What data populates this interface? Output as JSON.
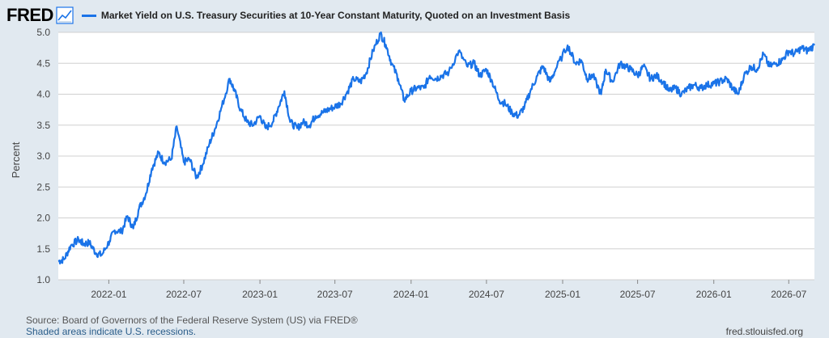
{
  "header": {
    "logo": "FRED",
    "logo_icon": "chart-line-icon",
    "series_title": "Market Yield on U.S. Treasury Securities at 10-Year Constant Maturity, Quoted on an Investment Basis"
  },
  "footer": {
    "source": "Source: Board of Governors of the Federal Reserve System (US) via FRED®",
    "recessions": "Shaded areas indicate U.S. recessions.",
    "site": "fred.stlouisfed.org"
  },
  "colors": {
    "line": "#1a73e8",
    "plot_bg": "#ffffff",
    "grid": "#d0d0d0"
  },
  "chart_data": {
    "type": "line",
    "title": "Market Yield on U.S. Treasury Securities at 10-Year Constant Maturity, Quoted on an Investment Basis",
    "xlabel": "",
    "ylabel": "Percent",
    "ylim": [
      1.0,
      5.0
    ],
    "yticks": [
      "1.0",
      "1.5",
      "2.0",
      "2.5",
      "3.0",
      "3.5",
      "4.0",
      "4.5",
      "5.0"
    ],
    "xticks": [
      "2022-01",
      "2022-07",
      "2023-01",
      "2023-07",
      "2024-01",
      "2024-07",
      "2025-01",
      "2025-07",
      "2026-01",
      "2026-07"
    ],
    "xlim": [
      "2021-09-01",
      "2026-09-01"
    ],
    "grid": true,
    "legend": "top-left",
    "series": [
      {
        "name": "Market Yield on U.S. Treasury Securities at 10-Year Constant Maturity, Quoted on an Investment Basis",
        "x": [
          "2021-09-01",
          "2021-09-15",
          "2021-10-01",
          "2021-10-20",
          "2021-11-01",
          "2021-11-15",
          "2021-12-01",
          "2021-12-15",
          "2022-01-03",
          "2022-01-15",
          "2022-02-01",
          "2022-02-15",
          "2022-03-01",
          "2022-03-15",
          "2022-04-01",
          "2022-04-15",
          "2022-05-01",
          "2022-05-15",
          "2022-06-01",
          "2022-06-14",
          "2022-07-01",
          "2022-07-15",
          "2022-08-01",
          "2022-08-15",
          "2022-09-01",
          "2022-09-15",
          "2022-10-01",
          "2022-10-20",
          "2022-11-01",
          "2022-11-15",
          "2022-12-01",
          "2022-12-15",
          "2023-01-01",
          "2023-01-15",
          "2023-02-01",
          "2023-02-15",
          "2023-03-01",
          "2023-03-15",
          "2023-04-01",
          "2023-04-15",
          "2023-05-01",
          "2023-05-15",
          "2023-06-01",
          "2023-06-15",
          "2023-07-01",
          "2023-07-15",
          "2023-08-01",
          "2023-08-15",
          "2023-09-01",
          "2023-09-15",
          "2023-10-01",
          "2023-10-19",
          "2023-11-01",
          "2023-11-15",
          "2023-12-01",
          "2023-12-15",
          "2024-01-01",
          "2024-01-15",
          "2024-02-01",
          "2024-02-15",
          "2024-03-01",
          "2024-03-15",
          "2024-04-01",
          "2024-04-25",
          "2024-05-15",
          "2024-06-01",
          "2024-06-15",
          "2024-07-01",
          "2024-07-15",
          "2024-08-01",
          "2024-08-15",
          "2024-09-01",
          "2024-09-16",
          "2024-10-01",
          "2024-10-15",
          "2024-11-01",
          "2024-11-15",
          "2024-12-01",
          "2024-12-15",
          "2025-01-13",
          "2025-02-01",
          "2025-02-15",
          "2025-03-01",
          "2025-03-15",
          "2025-04-04",
          "2025-04-15",
          "2025-05-01",
          "2025-05-20",
          "2025-06-01",
          "2025-06-15",
          "2025-07-01",
          "2025-07-15",
          "2025-08-01",
          "2025-08-15",
          "2025-09-01",
          "2025-09-15",
          "2025-10-01",
          "2025-10-15",
          "2025-11-01",
          "2025-11-15",
          "2025-12-01",
          "2025-12-15",
          "2026-01-01",
          "2026-01-15",
          "2026-02-01",
          "2026-02-15",
          "2026-03-01",
          "2026-03-15",
          "2026-04-01",
          "2026-04-15",
          "2026-05-01",
          "2026-05-15",
          "2026-06-01",
          "2026-06-15",
          "2026-07-01",
          "2026-07-15",
          "2026-08-01",
          "2026-08-15",
          "2026-09-01"
        ],
        "values": [
          1.3,
          1.33,
          1.55,
          1.65,
          1.58,
          1.6,
          1.43,
          1.4,
          1.63,
          1.8,
          1.78,
          2.03,
          1.83,
          2.15,
          2.4,
          2.8,
          3.05,
          2.9,
          2.95,
          3.48,
          2.9,
          2.95,
          2.65,
          2.85,
          3.2,
          3.45,
          3.8,
          4.25,
          4.05,
          3.75,
          3.55,
          3.5,
          3.65,
          3.45,
          3.55,
          3.8,
          4.05,
          3.55,
          3.45,
          3.55,
          3.5,
          3.65,
          3.7,
          3.75,
          3.8,
          3.85,
          4.05,
          4.25,
          4.2,
          4.35,
          4.7,
          4.98,
          4.8,
          4.5,
          4.25,
          3.9,
          4.05,
          4.1,
          4.1,
          4.3,
          4.25,
          4.3,
          4.35,
          4.7,
          4.45,
          4.5,
          4.3,
          4.4,
          4.2,
          3.9,
          3.85,
          3.7,
          3.65,
          3.8,
          4.05,
          4.3,
          4.45,
          4.2,
          4.4,
          4.79,
          4.5,
          4.55,
          4.25,
          4.3,
          4.0,
          4.4,
          4.2,
          4.5,
          4.45,
          4.4,
          4.3,
          4.45,
          4.25,
          4.3,
          4.2,
          4.05,
          4.1,
          4.0,
          4.1,
          4.15,
          4.1,
          4.15,
          4.17,
          4.2,
          4.25,
          4.1,
          4.0,
          4.3,
          4.45,
          4.4,
          4.65,
          4.45,
          4.5,
          4.55,
          4.7,
          4.65,
          4.75,
          4.7,
          4.79
        ]
      }
    ]
  }
}
